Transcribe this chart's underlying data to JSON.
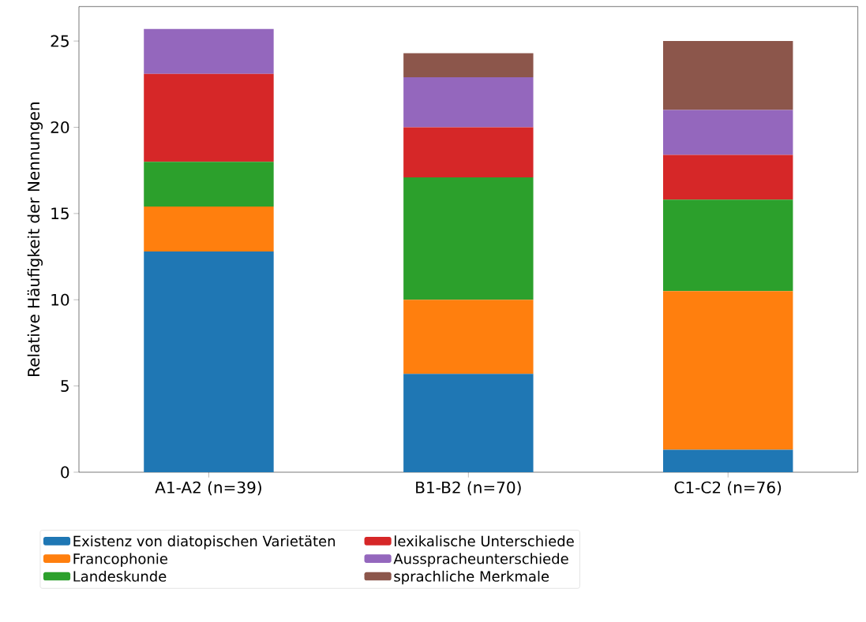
{
  "chart_data": {
    "type": "bar",
    "stacked": true,
    "ylabel": "Relative Häufigkeit der Nennungen",
    "categories": [
      "A1-A2 (n=39)",
      "B1-B2 (n=70)",
      "C1-C2 (n=76)"
    ],
    "series": [
      {
        "name": "Existenz von diatopischen Varietäten",
        "color": "#1f77b4",
        "values": [
          12.8,
          5.7,
          1.3
        ]
      },
      {
        "name": "Francophonie",
        "color": "#ff7f0e",
        "values": [
          2.6,
          4.3,
          9.2
        ]
      },
      {
        "name": "Landeskunde",
        "color": "#2ca02c",
        "values": [
          2.6,
          7.1,
          5.3
        ]
      },
      {
        "name": "lexikalische Unterschiede",
        "color": "#d62728",
        "values": [
          5.1,
          2.9,
          2.6
        ]
      },
      {
        "name": "Ausspracheunterschiede",
        "color": "#9467bd",
        "values": [
          2.6,
          2.9,
          2.6
        ]
      },
      {
        "name": "sprachliche Merkmale",
        "color": "#8c564b",
        "values": [
          0,
          1.4,
          4.0
        ]
      }
    ],
    "ylim": [
      0,
      27
    ],
    "yticks": [
      0,
      5,
      10,
      15,
      20,
      25
    ],
    "grid": false,
    "legend": "bottom"
  }
}
